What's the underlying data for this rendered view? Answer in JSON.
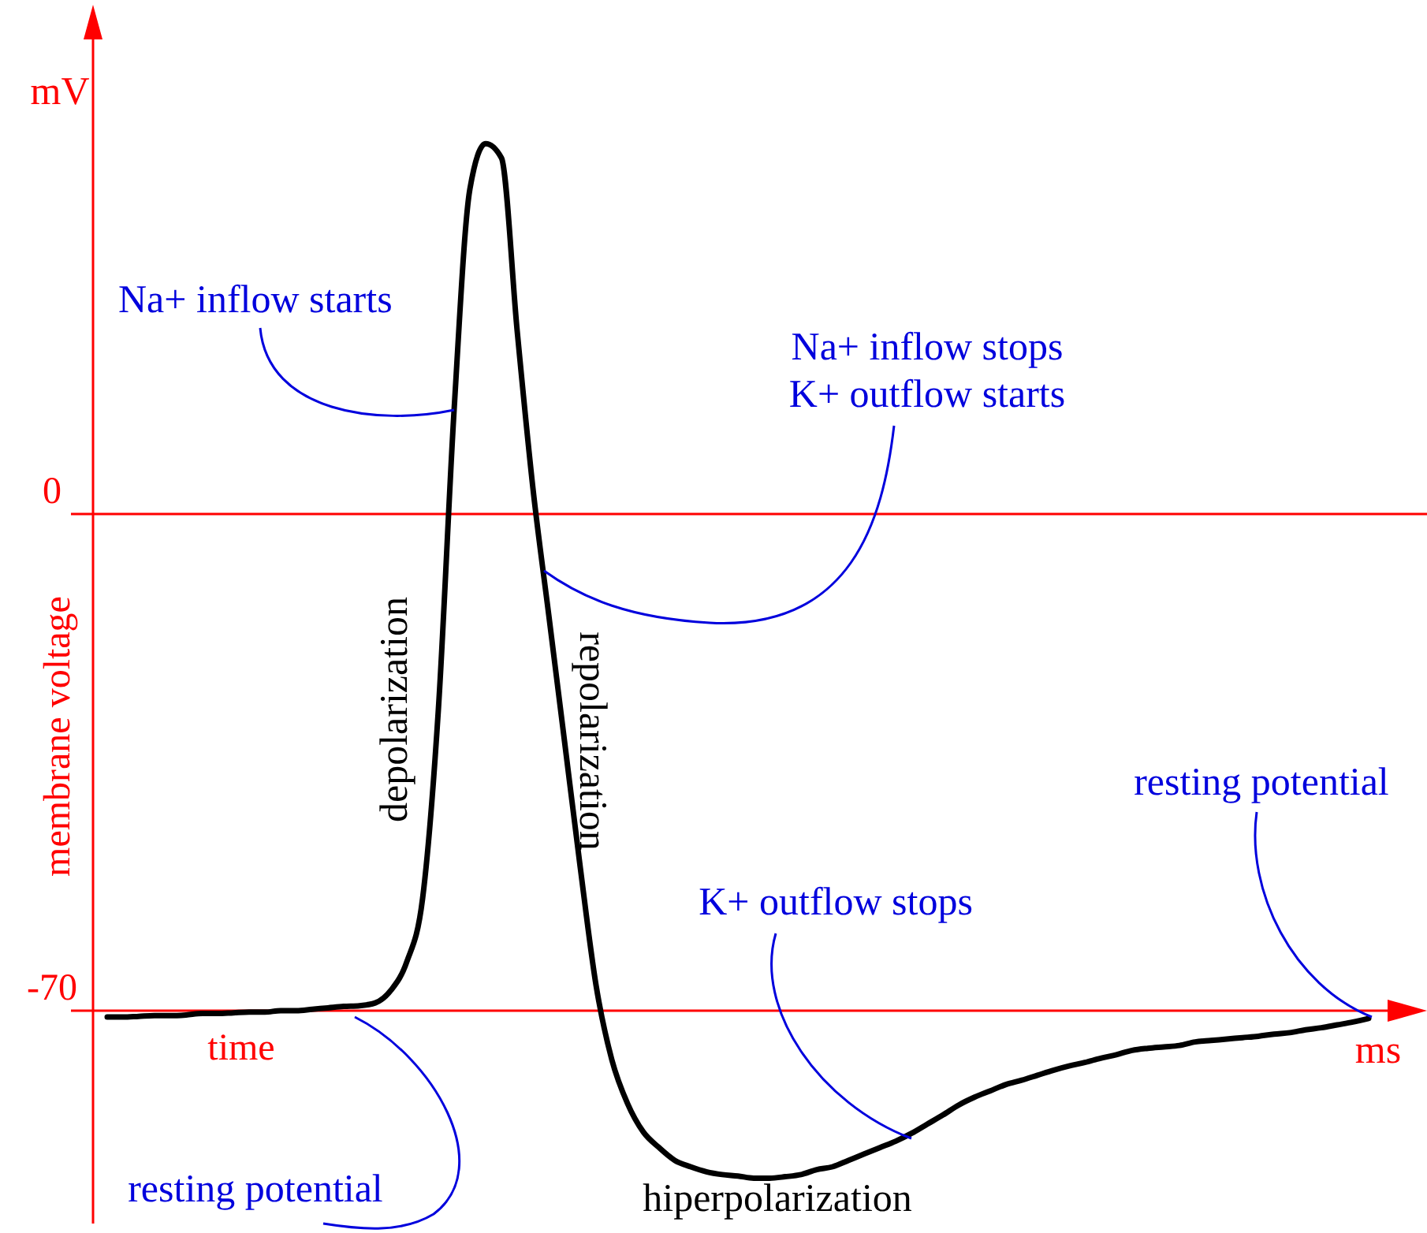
{
  "chart_data": {
    "type": "line",
    "xlabel": "time",
    "ylabel": "membrane voltage",
    "categories": [
      null,
      null,
      null,
      null,
      null,
      null,
      null,
      null,
      null,
      null,
      null,
      null,
      null,
      null,
      null,
      null,
      null,
      null,
      null,
      null,
      null,
      null,
      null,
      null,
      null,
      null,
      null,
      null,
      null,
      null,
      null,
      null,
      null,
      null,
      null,
      null,
      null,
      null,
      null,
      null,
      null,
      null,
      null,
      null,
      null,
      null,
      null,
      null,
      null,
      null,
      null,
      null,
      null,
      null,
      null,
      null,
      null,
      null,
      null,
      null,
      null,
      null,
      null,
      null,
      null,
      null,
      null,
      null,
      null,
      null,
      null,
      null,
      null,
      null,
      null,
      null,
      null,
      null,
      null,
      null,
      null
    ],
    "series": [
      {
        "color": "#000000",
        "values": [
          -70.9,
          -70.9,
          -70.8,
          -70.7,
          -70.7,
          -70.6,
          -70.4,
          -70.4,
          -70.3,
          -70.2,
          -70.2,
          -70,
          -70,
          -69.8,
          -69.6,
          -69.4,
          -69.3,
          -68.9,
          -67.1,
          -63.1,
          -54.2,
          -27.6,
          14.7,
          45.8,
          52.2,
          50.2,
          25.8,
          3.6,
          -14.2,
          -32,
          -49.8,
          -66.4,
          -76.9,
          -83.1,
          -87.1,
          -89.3,
          -91.1,
          -92,
          -92.7,
          -93.1,
          -93.3,
          -93.6,
          -93.6,
          -93.4,
          -93.1,
          -92.4,
          -92,
          -91.1,
          -90.2,
          -89.3,
          -88.4,
          -87.3,
          -86,
          -84.7,
          -83.3,
          -82.2,
          -81.3,
          -80.4,
          -79.8,
          -79.1,
          -78.4,
          -77.8,
          -77.3,
          -76.7,
          -76.2,
          -75.6,
          -75.3,
          -75.1,
          -74.9,
          -74.4,
          -74.2,
          -74,
          -73.8,
          -73.6,
          -73.3,
          -73.1,
          -72.7,
          -72.4,
          -72,
          -71.6,
          -71.1
        ]
      }
    ],
    "ylim": [
      -100,
      70
    ],
    "yticks": [
      -70,
      0
    ],
    "marker": "none",
    "line_style": "solid",
    "ref_lines": [
      {
        "axis": "y",
        "value": 0,
        "color": "#ff0000"
      },
      {
        "axis": "y",
        "value": -70,
        "color": "#ff0000"
      }
    ],
    "annotations": [
      "mV",
      "ms",
      "Na+ inflow starts",
      "Na+ inflow stops\nK+ outflow starts",
      "K+ outflow stops",
      "resting potential",
      "resting potential",
      "depolarization",
      "repolarization",
      "hiperpolarization"
    ]
  }
}
